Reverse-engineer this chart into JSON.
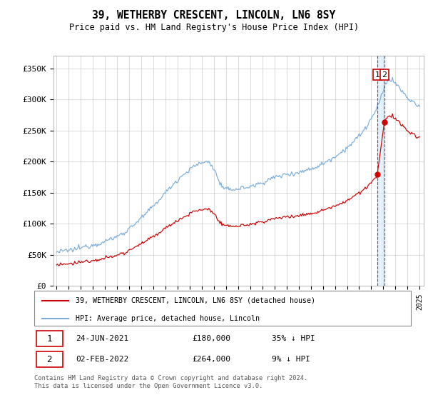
{
  "title": "39, WETHERBY CRESCENT, LINCOLN, LN6 8SY",
  "subtitle": "Price paid vs. HM Land Registry's House Price Index (HPI)",
  "hpi_color": "#7aaddb",
  "price_color": "#cc0000",
  "dashed_color": "#cc0000",
  "shade_color": "#d0e8f8",
  "background_color": "#ffffff",
  "grid_color": "#cccccc",
  "ylim": [
    0,
    370000
  ],
  "yticks": [
    0,
    50000,
    100000,
    150000,
    200000,
    250000,
    300000,
    350000
  ],
  "ytick_labels": [
    "£0",
    "£50K",
    "£100K",
    "£150K",
    "£200K",
    "£250K",
    "£300K",
    "£350K"
  ],
  "legend_label_price": "39, WETHERBY CRESCENT, LINCOLN, LN6 8SY (detached house)",
  "legend_label_hpi": "HPI: Average price, detached house, Lincoln",
  "transaction1_date": "24-JUN-2021",
  "transaction1_price": "£180,000",
  "transaction1_hpi": "35% ↓ HPI",
  "transaction2_date": "02-FEB-2022",
  "transaction2_price": "£264,000",
  "transaction2_hpi": "9% ↓ HPI",
  "footer": "Contains HM Land Registry data © Crown copyright and database right 2024.\nThis data is licensed under the Open Government Licence v3.0.",
  "t1_month": 318,
  "t2_month": 325,
  "t1_price": 180000,
  "t2_price": 264000,
  "n_months": 361,
  "start_year": 1995
}
